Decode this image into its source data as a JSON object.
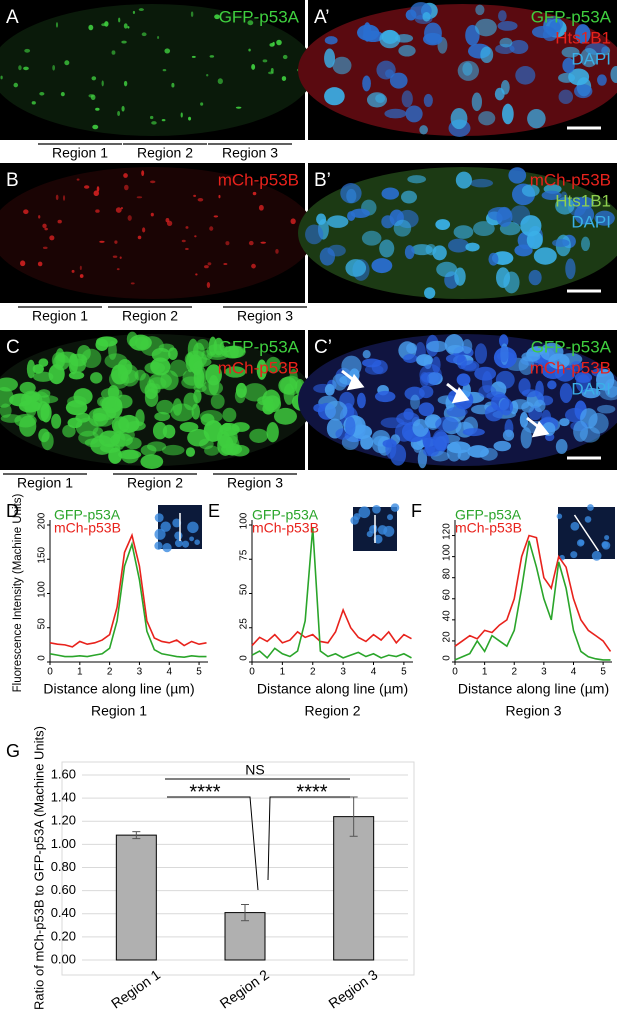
{
  "image_panels": [
    {
      "label": "A",
      "channels": [
        {
          "name": "GFP-p53A",
          "color": "#3fcf3f"
        }
      ],
      "regions": [
        "Region 1",
        "Region 2",
        "Region 3"
      ]
    },
    {
      "label": "A’",
      "channels": [
        {
          "name": "GFP-p53A",
          "color": "#3fcf3f"
        },
        {
          "name": "Hts1B1",
          "color": "#e8221c"
        },
        {
          "name": "DAPI",
          "color": "#3ab0e8"
        }
      ]
    },
    {
      "label": "B",
      "channels": [
        {
          "name": "mCh-p53B",
          "color": "#e8221c"
        }
      ],
      "regions": [
        "Region 1",
        "Region 2",
        "Region 3"
      ]
    },
    {
      "label": "B’",
      "channels": [
        {
          "name": "mCh-p53B",
          "color": "#e8221c"
        },
        {
          "name": "Hts1B1",
          "color": "#8fd04f"
        },
        {
          "name": "DAPI",
          "color": "#3ab0e8"
        }
      ]
    },
    {
      "label": "C",
      "channels": [
        {
          "name": "GFP-p53A",
          "color": "#3fcf3f"
        },
        {
          "name": "mCh-p53B",
          "color": "#e8221c"
        }
      ],
      "regions": [
        "Region 1",
        "Region 2",
        "Region 3"
      ]
    },
    {
      "label": "C’",
      "channels": [
        {
          "name": "GFP-p53A",
          "color": "#3fcf3f"
        },
        {
          "name": "mCh-p53B",
          "color": "#e8221c"
        },
        {
          "name": "DAPI",
          "color": "#3ab0e8"
        }
      ]
    }
  ],
  "chart_data": [
    {
      "type": "line",
      "panel_label": "D",
      "subtitle": "Region 1",
      "xlabel": "Distance along line (µm)",
      "ylabel": "Fluorescence Intensity (Machine Units)",
      "x": [
        0,
        0.25,
        0.5,
        0.75,
        1,
        1.25,
        1.5,
        1.75,
        2,
        2.25,
        2.5,
        2.75,
        3,
        3.25,
        3.5,
        3.75,
        4,
        4.25,
        4.5,
        4.75,
        5,
        5.25
      ],
      "series": [
        {
          "name": "GFP-p53A",
          "color": "#2aa52a",
          "values": [
            12,
            10,
            8,
            8,
            9,
            8,
            10,
            12,
            20,
            60,
            140,
            172,
            120,
            45,
            18,
            12,
            10,
            8,
            7,
            9,
            8,
            8
          ]
        },
        {
          "name": "mCh-p53B",
          "color": "#e8221c",
          "values": [
            28,
            26,
            25,
            22,
            30,
            26,
            28,
            32,
            40,
            80,
            160,
            185,
            140,
            60,
            35,
            30,
            28,
            32,
            24,
            30,
            26,
            28
          ]
        }
      ],
      "xlim": [
        0,
        5.3
      ],
      "xticks": [
        0,
        1,
        2,
        3,
        4,
        5
      ],
      "ylim": [
        0,
        200
      ],
      "yticks": [
        0,
        50,
        100,
        150,
        200
      ]
    },
    {
      "type": "line",
      "panel_label": "E",
      "subtitle": "Region 2",
      "xlabel": "Distance along line (µm)",
      "x": [
        0,
        0.25,
        0.5,
        0.75,
        1,
        1.25,
        1.5,
        1.75,
        2,
        2.25,
        2.5,
        2.75,
        3,
        3.25,
        3.5,
        3.75,
        4,
        4.25,
        4.5,
        4.75,
        5,
        5.25
      ],
      "series": [
        {
          "name": "GFP-p53A",
          "color": "#2aa52a",
          "values": [
            5,
            8,
            3,
            10,
            6,
            4,
            8,
            30,
            98,
            8,
            4,
            6,
            3,
            5,
            7,
            4,
            6,
            3,
            5,
            4,
            6,
            3
          ]
        },
        {
          "name": "mCh-p53B",
          "color": "#e8221c",
          "values": [
            12,
            18,
            15,
            20,
            14,
            16,
            22,
            18,
            20,
            15,
            14,
            22,
            38,
            25,
            18,
            15,
            20,
            16,
            22,
            14,
            20,
            17
          ]
        }
      ],
      "xlim": [
        0,
        5.3
      ],
      "xticks": [
        0,
        1,
        2,
        3,
        4,
        5
      ],
      "ylim": [
        0,
        100
      ],
      "yticks": [
        0,
        25,
        50,
        75,
        100
      ]
    },
    {
      "type": "line",
      "panel_label": "F",
      "subtitle": "Region 3",
      "xlabel": "Distance along line (µm)",
      "x": [
        0,
        0.25,
        0.5,
        0.75,
        1,
        1.25,
        1.5,
        1.75,
        2,
        2.25,
        2.5,
        2.75,
        3,
        3.25,
        3.5,
        3.75,
        4,
        4.25,
        4.5,
        4.75,
        5,
        5.25
      ],
      "series": [
        {
          "name": "GFP-p53A",
          "color": "#2aa52a",
          "values": [
            2,
            5,
            8,
            20,
            10,
            25,
            20,
            15,
            30,
            70,
            115,
            90,
            60,
            40,
            95,
            70,
            30,
            10,
            5,
            3,
            2,
            2
          ]
        },
        {
          "name": "mCh-p53B",
          "color": "#e8221c",
          "values": [
            15,
            20,
            25,
            22,
            30,
            28,
            35,
            40,
            60,
            100,
            120,
            118,
            80,
            70,
            100,
            90,
            60,
            40,
            30,
            25,
            20,
            10
          ]
        }
      ],
      "xlim": [
        0,
        5.3
      ],
      "xticks": [
        0,
        1,
        2,
        3,
        4,
        5
      ],
      "ylim": [
        0,
        130
      ],
      "yticks": [
        0,
        20,
        40,
        60,
        80,
        100,
        120
      ]
    },
    {
      "type": "bar",
      "panel_label": "G",
      "ylabel": "Ratio of mCh-p53B to GFP-p53A (Machine Units)",
      "categories": [
        "Region 1",
        "Region 2",
        "Region 3"
      ],
      "values": [
        1.08,
        0.41,
        1.24
      ],
      "errors": [
        0.03,
        0.07,
        0.17
      ],
      "color": "#b0b0b0",
      "ylim": [
        0,
        1.6
      ],
      "yticks": [
        {
          "value": 0,
          "label": "0.00"
        },
        {
          "value": 0.2,
          "label": "0.20"
        },
        {
          "value": 0.4,
          "label": "0.40"
        },
        {
          "value": 0.6,
          "label": "0.60"
        },
        {
          "value": 0.8,
          "label": "0.80"
        },
        {
          "value": 1,
          "label": "1.00"
        },
        {
          "value": 1.2,
          "label": "1.20"
        },
        {
          "value": 1.4,
          "label": "1.40"
        },
        {
          "value": 1.6,
          "label": "1.60"
        }
      ],
      "grid": true,
      "annotations": [
        "****",
        "NS",
        "****"
      ]
    }
  ]
}
